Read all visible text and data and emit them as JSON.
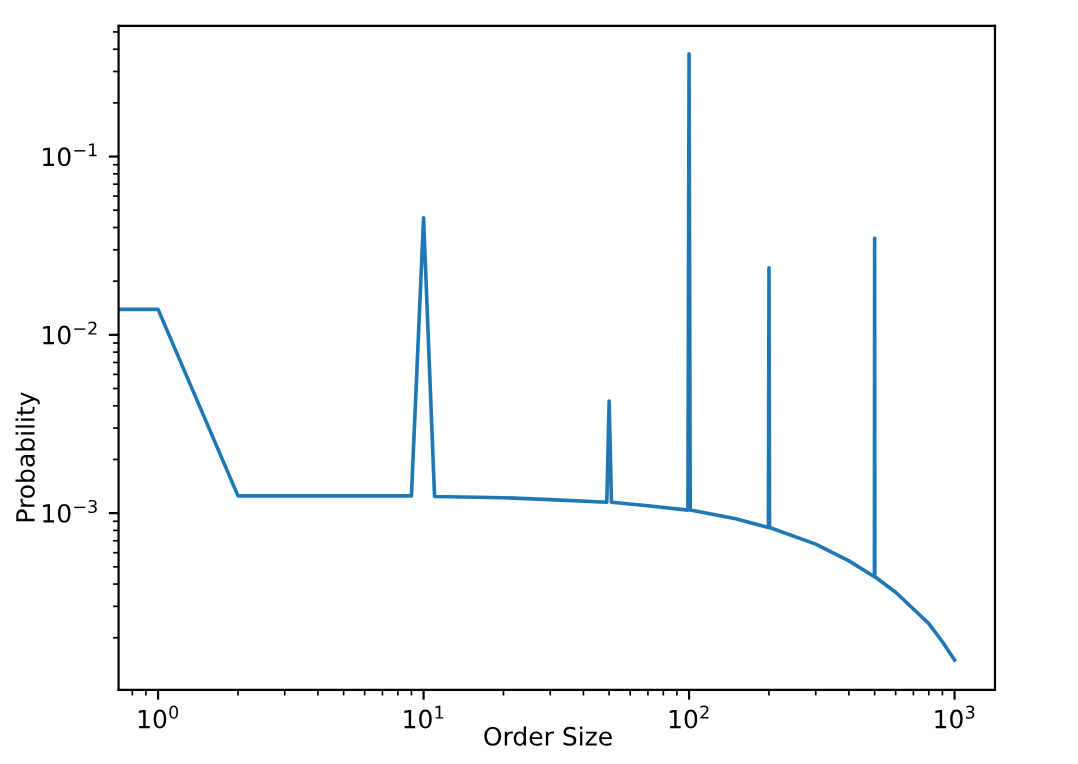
{
  "chart_data": {
    "type": "line",
    "xlabel": "Order Size",
    "ylabel": "Probability",
    "log": "xy",
    "grid": false,
    "x": [
      0.71,
      1,
      2,
      9,
      10,
      11,
      20,
      30,
      49,
      50,
      51,
      70,
      99,
      100,
      101,
      150,
      199,
      200,
      201,
      300,
      400,
      499,
      500,
      501,
      600,
      700,
      800,
      900,
      1000
    ],
    "series": [
      {
        "color": "#1f77b4",
        "values": [
          0.0139,
          0.0139,
          0.00125,
          0.00125,
          0.0454,
          0.00124,
          0.00122,
          0.00119,
          0.00115,
          0.00425,
          0.00115,
          0.0011,
          0.00104,
          0.377,
          0.00104,
          0.00093,
          0.00083,
          0.0238,
          0.00083,
          0.00067,
          0.00054,
          0.00044,
          0.0348,
          0.00044,
          0.00036,
          0.00029,
          0.00024,
          0.00019,
          0.00015
        ]
      }
    ],
    "xlim": [
      0.71,
      1420
    ],
    "ylim": [
      0.000102,
      0.54
    ],
    "xticks": [
      {
        "value": 1,
        "label": "10$^{0}$"
      },
      {
        "value": 10,
        "label": "10$^{1}$"
      },
      {
        "value": 100,
        "label": "10$^{2}$"
      },
      {
        "value": 1000,
        "label": "10$^{3}$"
      }
    ],
    "yticks": [
      {
        "value": 0.001,
        "label": "10$^{−3}$"
      },
      {
        "value": 0.01,
        "label": "10$^{−2}$"
      },
      {
        "value": 0.1,
        "label": "10$^{−1}$"
      }
    ]
  }
}
